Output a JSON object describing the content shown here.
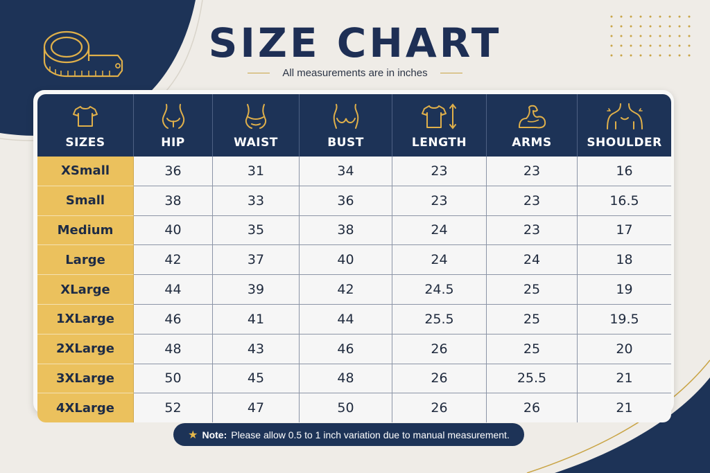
{
  "header": {
    "title": "SIZE CHART",
    "subtitle": "All measurements are in inches"
  },
  "table": {
    "columns": [
      {
        "label": "SIZES",
        "icon": "tshirt-icon"
      },
      {
        "label": "HIP",
        "icon": "hip-icon"
      },
      {
        "label": "WAIST",
        "icon": "waist-icon"
      },
      {
        "label": "BUST",
        "icon": "bust-icon"
      },
      {
        "label": "LENGTH",
        "icon": "length-icon"
      },
      {
        "label": "ARMS",
        "icon": "arm-icon"
      },
      {
        "label": "SHOULDER",
        "icon": "shoulder-icon"
      }
    ],
    "rows": [
      [
        "XSmall",
        "36",
        "31",
        "34",
        "23",
        "23",
        "16"
      ],
      [
        "Small",
        "38",
        "33",
        "36",
        "23",
        "23",
        "16.5"
      ],
      [
        "Medium",
        "40",
        "35",
        "38",
        "24",
        "23",
        "17"
      ],
      [
        "Large",
        "42",
        "37",
        "40",
        "24",
        "24",
        "18"
      ],
      [
        "XLarge",
        "44",
        "39",
        "42",
        "24.5",
        "25",
        "19"
      ],
      [
        "1XLarge",
        "46",
        "41",
        "44",
        "25.5",
        "25",
        "19.5"
      ],
      [
        "2XLarge",
        "48",
        "43",
        "46",
        "26",
        "25",
        "20"
      ],
      [
        "3XLarge",
        "50",
        "45",
        "48",
        "26",
        "25.5",
        "21"
      ],
      [
        "4XLarge",
        "52",
        "47",
        "50",
        "26",
        "26",
        "21"
      ]
    ]
  },
  "note": {
    "label": "Note:",
    "text": "Please allow 0.5 to 1 inch variation due to manual measurement."
  },
  "colors": {
    "navy": "#1d3357",
    "gold": "#ebc15d",
    "background": "#efece7"
  }
}
